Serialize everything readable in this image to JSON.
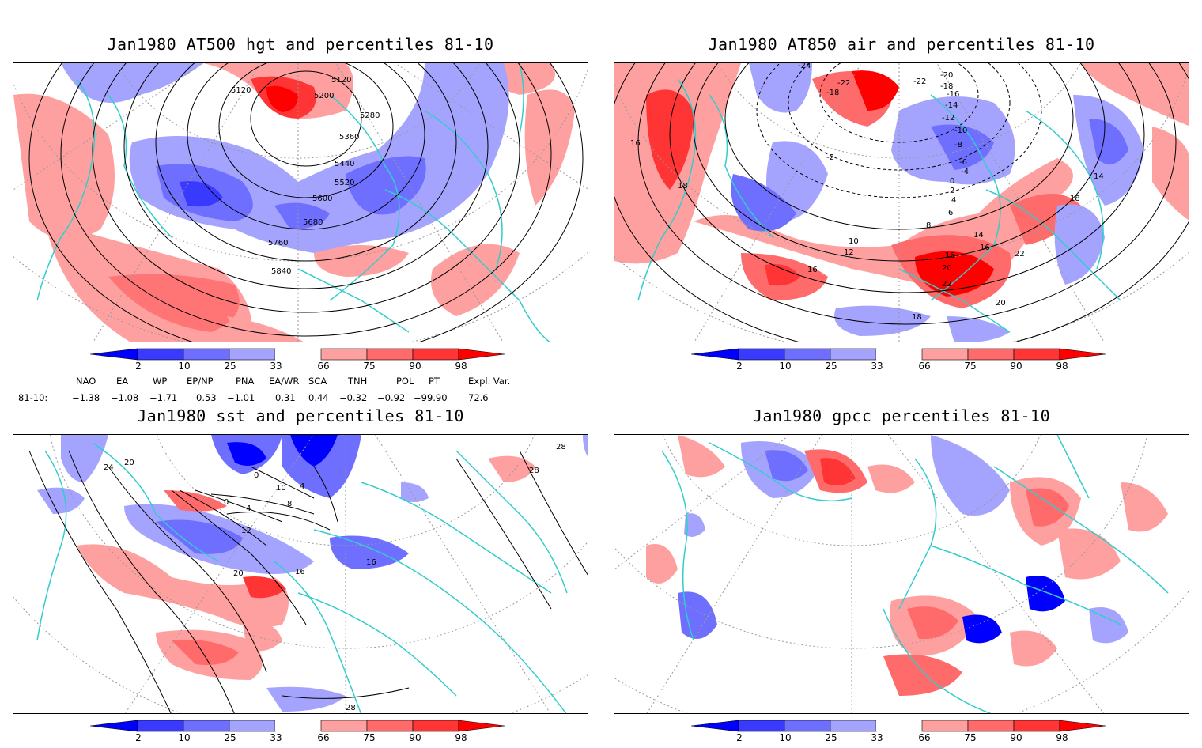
{
  "panels": [
    {
      "id": "hgt",
      "title": "Jan1980 AT500 hgt and percentiles 81-10",
      "contour_labels": [
        "5120",
        "5120",
        "5200",
        "5280",
        "5360",
        "5440",
        "5520",
        "5600",
        "5680",
        "5760",
        "5840"
      ]
    },
    {
      "id": "air",
      "title": "Jan1980 AT850 air and percentiles 81-10",
      "contour_labels": [
        "-24",
        "-22",
        "-22",
        "-20",
        "-18",
        "-18",
        "-16",
        "-14",
        "-12",
        "-10",
        "-8",
        "-6",
        "-4",
        "-2",
        "0",
        "2",
        "4",
        "6",
        "8",
        "10",
        "12",
        "14",
        "14",
        "16",
        "16",
        "16",
        "16",
        "18",
        "18",
        "18",
        "20",
        "20",
        "22",
        "22"
      ]
    },
    {
      "id": "sst",
      "title": "Jan1980 sst and percentiles 81-10",
      "contour_labels": [
        "24",
        "20",
        "0",
        "0",
        "4",
        "4",
        "8",
        "10",
        "12",
        "16",
        "16",
        "20",
        "28",
        "28",
        "28"
      ]
    },
    {
      "id": "gpcc",
      "title": "Jan1980 gpcc percentiles 81-10",
      "contour_labels": []
    }
  ],
  "colorbar": {
    "ticks": [
      "2",
      "10",
      "25",
      "33",
      "66",
      "75",
      "90",
      "98"
    ],
    "colors": [
      "#0000ff",
      "#3a3aff",
      "#6f6fff",
      "#a4a4ff",
      "#ffffff",
      "#ffa0a0",
      "#ff6a6a",
      "#ff3434",
      "#ff0000"
    ]
  },
  "indices": {
    "headers": [
      "NAO",
      "EA",
      "WP",
      "EP/NP",
      "PNA",
      "EA/WR",
      "SCA",
      "TNH",
      "POL",
      "PT",
      "Expl. Var."
    ],
    "row_label": "81-10:",
    "values": [
      "−1.38",
      "−1.08",
      "−1.71",
      "0.53",
      "−1.01",
      "0.31",
      "0.44",
      "−0.32",
      "−0.92",
      "−99.90",
      "72.6"
    ]
  },
  "map_style": {
    "coast_color": "#33cccc",
    "contour_color": "#000000",
    "grid_color": "#999999"
  }
}
